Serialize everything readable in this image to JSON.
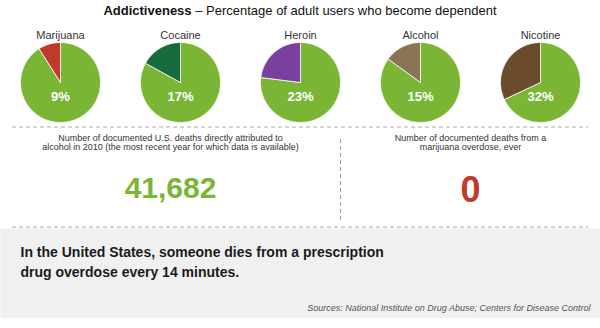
{
  "title": "Addictiveness",
  "subtitle": "– Percentage of adult users who become dependent",
  "chart_data": [
    {
      "type": "pie",
      "title": "Marijuana",
      "values": [
        91,
        9
      ],
      "colors": [
        "#7ab535",
        "#c0392b"
      ],
      "data_labels": true,
      "value_labels": [
        null,
        "9%"
      ]
    },
    {
      "type": "pie",
      "title": "Cocaine",
      "values": [
        83,
        17
      ],
      "colors": [
        "#7ab535",
        "#1a6b3c"
      ],
      "data_labels": true,
      "value_labels": [
        null,
        "17%"
      ]
    },
    {
      "type": "pie",
      "title": "Heroin",
      "values": [
        77,
        23
      ],
      "colors": [
        "#7ab535",
        "#7b3fa0"
      ],
      "data_labels": true,
      "value_labels": [
        null,
        "23%"
      ]
    },
    {
      "type": "pie",
      "title": "Alcohol",
      "values": [
        85,
        15
      ],
      "colors": [
        "#7ab535",
        "#8b7355"
      ],
      "data_labels": true,
      "value_labels": [
        null,
        "15%"
      ]
    },
    {
      "type": "pie",
      "title": "Nicotine",
      "values": [
        68,
        32
      ],
      "colors": [
        "#7ab535",
        "#6b4c2a"
      ],
      "data_labels": true,
      "value_labels": [
        null,
        "32%"
      ]
    }
  ],
  "annotations": [
    {
      "text": "Number of documented U.S. deaths directly attributed to\nalcohol in 2010 (the most recent year for which data is available)"
    },
    {
      "text": "41,682",
      "color": "#7ab535"
    },
    {
      "text": "Number of documented deaths from a\nmarijuana overdose, ever"
    },
    {
      "text": "0",
      "color": "#c0392b"
    },
    {
      "text": "In the United States, someone dies from a prescription"
    },
    {
      "text": "drug overdose every 14 minutes."
    }
  ],
  "caption": "Sources: National Institute on Drug Abuse; Centers for Disease Control"
}
